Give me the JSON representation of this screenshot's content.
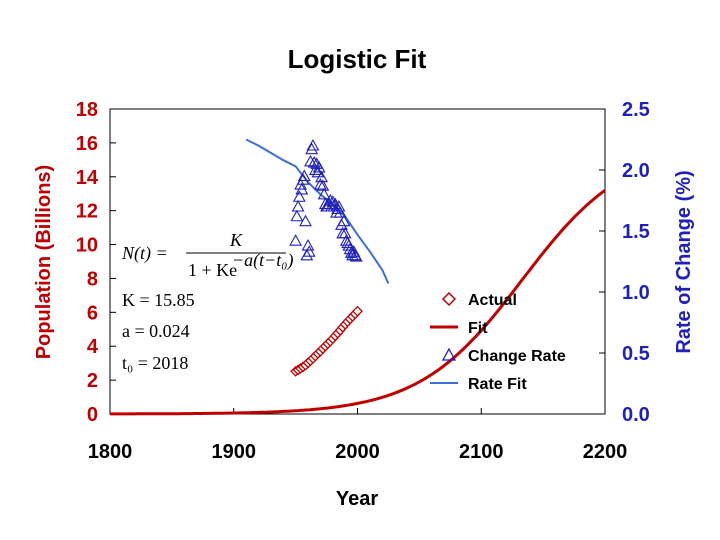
{
  "chart_data": {
    "type": "line",
    "title": "Logistic Fit",
    "xlabel": "Year",
    "ylabel_left": "Population (Billions)",
    "ylabel_right": "Rate of Change (%)",
    "xlim": [
      1800,
      2200
    ],
    "ylim_left": [
      0,
      18
    ],
    "ylim_right": [
      0,
      2.5
    ],
    "x_ticks": [
      "1800",
      "1900",
      "2000",
      "2100",
      "2200"
    ],
    "y_left_ticks": [
      "0",
      "2",
      "4",
      "6",
      "8",
      "10",
      "12",
      "14",
      "16",
      "18"
    ],
    "y_right_ticks": [
      "0.0",
      "0.5",
      "1.0",
      "1.5",
      "2.0",
      "2.5"
    ],
    "colors": {
      "actual": "#c00000",
      "fit": "#c00000",
      "change_rate": "#1f1fbf",
      "rate_fit": "#3a6fd8",
      "left_axis": "#c00000",
      "right_axis": "#1f1fbf"
    },
    "equation": {
      "lhs": "N(t) =",
      "numerator": "K",
      "denominator_base": "1 + Ke",
      "denominator_exp": "−a(t−t₀)",
      "K_line": "K = 15.85",
      "a_line": "a = 0.024",
      "t0_line": "t₀ = 2018"
    },
    "params": {
      "K": 15.85,
      "a": 0.024,
      "t0": 2018
    },
    "legend": {
      "position": "bottom-right",
      "entries": [
        "Actual",
        "Fit",
        "Change Rate",
        "Rate Fit"
      ]
    },
    "series": [
      {
        "name": "Actual",
        "axis": "left",
        "marker": "diamond",
        "x": [
          1950,
          1952,
          1954,
          1956,
          1958,
          1960,
          1962,
          1964,
          1966,
          1968,
          1970,
          1972,
          1974,
          1976,
          1978,
          1980,
          1982,
          1984,
          1986,
          1988,
          1990,
          1992,
          1994,
          1996,
          1998,
          2000
        ],
        "y": [
          2.52,
          2.6,
          2.69,
          2.78,
          2.88,
          3.02,
          3.14,
          3.28,
          3.42,
          3.57,
          3.7,
          3.86,
          4.0,
          4.15,
          4.29,
          4.44,
          4.61,
          4.77,
          4.94,
          5.12,
          5.29,
          5.45,
          5.61,
          5.76,
          5.91,
          6.07
        ]
      },
      {
        "name": "Change Rate",
        "axis": "right",
        "marker": "triangle",
        "x": [
          1950,
          1951,
          1952,
          1953,
          1954,
          1955,
          1956,
          1957,
          1958,
          1959,
          1960,
          1961,
          1962,
          1963,
          1964,
          1965,
          1966,
          1967,
          1968,
          1969,
          1970,
          1971,
          1972,
          1973,
          1974,
          1975,
          1976,
          1977,
          1978,
          1979,
          1980,
          1981,
          1982,
          1983,
          1984,
          1985,
          1986,
          1987,
          1988,
          1989,
          1990,
          1991,
          1992,
          1993,
          1994,
          1995,
          1996,
          1997,
          1998,
          1999
        ],
        "y": [
          1.42,
          1.62,
          1.7,
          1.78,
          1.88,
          1.84,
          1.92,
          1.95,
          1.58,
          1.3,
          1.38,
          1.33,
          2.07,
          2.17,
          2.2,
          2.06,
          2.0,
          2.05,
          1.98,
          2.02,
          1.88,
          1.94,
          1.87,
          1.8,
          1.72,
          1.7,
          1.7,
          1.72,
          1.75,
          1.7,
          1.74,
          1.7,
          1.72,
          1.65,
          1.68,
          1.7,
          1.65,
          1.55,
          1.48,
          1.58,
          1.48,
          1.42,
          1.4,
          1.38,
          1.35,
          1.32,
          1.3,
          1.33,
          1.3,
          1.29
        ]
      },
      {
        "name": "Rate Fit",
        "axis": "right",
        "style": "line",
        "x": [
          1910,
          1920,
          1930,
          1940,
          1950,
          1960,
          1970,
          1980,
          1990,
          2000,
          2010,
          2020,
          2025
        ],
        "y": [
          2.25,
          2.2,
          2.14,
          2.08,
          2.03,
          1.9,
          1.8,
          1.72,
          1.62,
          1.47,
          1.33,
          1.18,
          1.07
        ]
      },
      {
        "name": "Fit",
        "axis": "left",
        "style": "line",
        "formula": "K / (1 + K * exp(-a (t - t0)))",
        "x_range": [
          1800,
          2200
        ]
      }
    ]
  }
}
